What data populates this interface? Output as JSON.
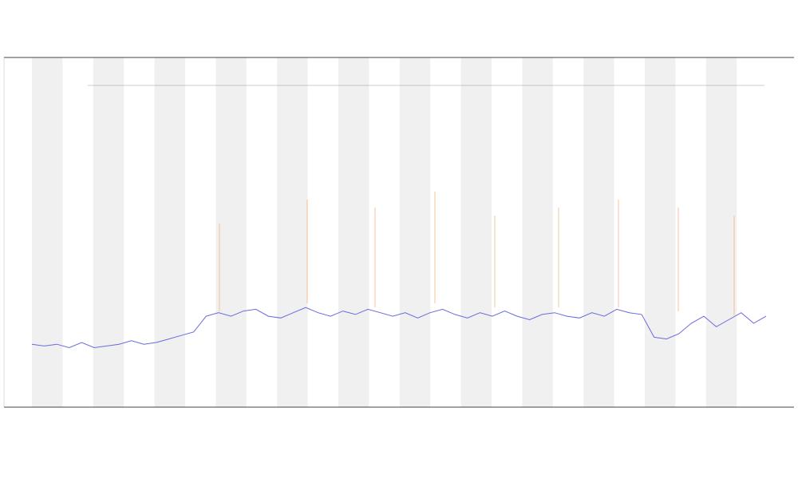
{
  "chart_data": {
    "type": "line",
    "values": [
      18,
      17.5,
      18,
      17,
      18.5,
      17,
      17.5,
      18,
      19,
      18,
      18.5,
      19.5,
      20.5,
      21.5,
      26,
      27,
      26,
      27.5,
      28,
      26,
      25.5,
      27,
      28.5,
      27,
      26,
      27.5,
      26.5,
      28,
      27,
      26,
      27,
      25.5,
      27,
      28,
      26.5,
      25.5,
      27,
      26,
      27.5,
      26,
      25,
      26.5,
      27,
      26,
      25.5,
      27,
      26,
      28,
      27,
      26.5,
      20,
      19.5,
      21,
      24,
      26,
      23,
      25,
      27,
      24,
      26
    ],
    "color": "#6a6ae0",
    "ylim": [
      0,
      100
    ]
  }
}
